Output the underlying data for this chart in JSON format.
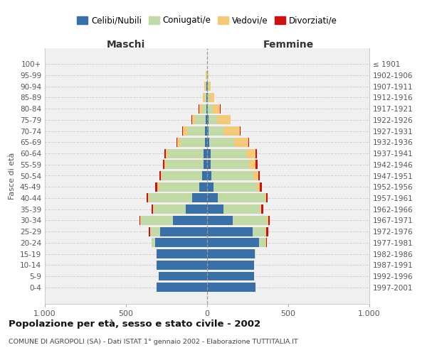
{
  "age_groups": [
    "0-4",
    "5-9",
    "10-14",
    "15-19",
    "20-24",
    "25-29",
    "30-34",
    "35-39",
    "40-44",
    "45-49",
    "50-54",
    "55-59",
    "60-64",
    "65-69",
    "70-74",
    "75-79",
    "80-84",
    "85-89",
    "90-94",
    "95-99",
    "100+"
  ],
  "birth_years": [
    "1997-2001",
    "1992-1996",
    "1987-1991",
    "1982-1986",
    "1977-1981",
    "1972-1976",
    "1967-1971",
    "1962-1966",
    "1957-1961",
    "1952-1956",
    "1947-1951",
    "1942-1946",
    "1937-1941",
    "1932-1936",
    "1927-1931",
    "1922-1926",
    "1917-1921",
    "1912-1916",
    "1907-1911",
    "1902-1906",
    "≤ 1901"
  ],
  "males": {
    "celibi": [
      310,
      300,
      310,
      310,
      320,
      290,
      210,
      130,
      90,
      50,
      30,
      20,
      20,
      15,
      15,
      8,
      5,
      3,
      3,
      2,
      0
    ],
    "coniugati": [
      0,
      0,
      0,
      2,
      20,
      60,
      200,
      200,
      270,
      250,
      250,
      235,
      220,
      150,
      110,
      65,
      25,
      10,
      5,
      2,
      0
    ],
    "vedovi": [
      0,
      0,
      0,
      0,
      2,
      3,
      3,
      5,
      5,
      5,
      5,
      10,
      15,
      20,
      25,
      20,
      20,
      15,
      8,
      3,
      0
    ],
    "divorziati": [
      0,
      0,
      0,
      0,
      2,
      5,
      5,
      8,
      10,
      15,
      10,
      8,
      8,
      5,
      5,
      2,
      2,
      0,
      0,
      0,
      0
    ]
  },
  "females": {
    "nubili": [
      300,
      290,
      290,
      295,
      320,
      280,
      160,
      100,
      65,
      40,
      25,
      20,
      20,
      15,
      10,
      8,
      5,
      3,
      3,
      2,
      0
    ],
    "coniugate": [
      0,
      0,
      0,
      5,
      40,
      80,
      210,
      230,
      290,
      265,
      260,
      240,
      220,
      150,
      90,
      55,
      30,
      12,
      5,
      2,
      0
    ],
    "vedove": [
      0,
      0,
      0,
      0,
      3,
      5,
      5,
      5,
      10,
      20,
      30,
      40,
      60,
      90,
      100,
      80,
      45,
      30,
      12,
      4,
      0
    ],
    "divorziate": [
      0,
      0,
      0,
      0,
      5,
      10,
      10,
      10,
      8,
      12,
      10,
      10,
      8,
      5,
      5,
      3,
      2,
      0,
      0,
      0,
      0
    ]
  },
  "colors": {
    "celibi": "#3a6fa8",
    "coniugati": "#c2d9a8",
    "vedovi": "#f5c97a",
    "divorziati": "#cc1111"
  },
  "xlim": 1000,
  "title": "Popolazione per età, sesso e stato civile - 2002",
  "subtitle": "COMUNE DI AGROPOLI (SA) - Dati ISTAT 1° gennaio 2002 - Elaborazione TUTTITALIA.IT",
  "ylabel_left": "Fasce di età",
  "xlabel_left": "Maschi",
  "xlabel_right": "Femmine",
  "legend_labels": [
    "Celibi/Nubili",
    "Coniugati/e",
    "Vedovi/e",
    "Divorziati/e"
  ],
  "background_color": "#ffffff",
  "plot_bg_color": "#f0f0f0",
  "grid_color": "#cccccc"
}
